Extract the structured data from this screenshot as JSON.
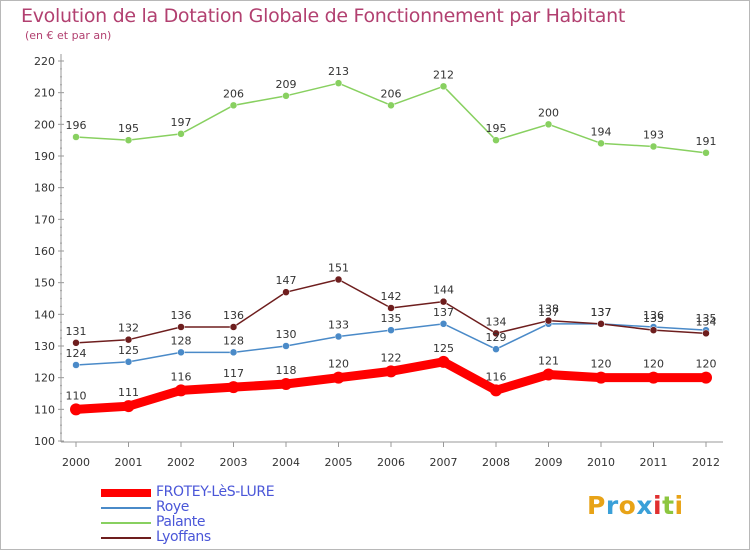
{
  "title": "Evolution de la Dotation Globale de Fonctionnement par Habitant",
  "subtitle": "(en € et par an)",
  "logo": {
    "letters": [
      "P",
      "r",
      "o",
      "x",
      "i",
      "t",
      "i"
    ],
    "colors": [
      "#e8a317",
      "#3aa0d8",
      "#e8a317",
      "#3aa0d8",
      "#e03030",
      "#8cc63f",
      "#e8a317"
    ]
  },
  "chart_data": {
    "type": "line",
    "x": [
      "2000",
      "2001",
      "2002",
      "2003",
      "2004",
      "2005",
      "2006",
      "2007",
      "2008",
      "2009",
      "2010",
      "2011",
      "2012"
    ],
    "ylim": [
      100,
      220
    ],
    "yticks": [
      "100",
      "110",
      "120",
      "130",
      "140",
      "150",
      "160",
      "170",
      "180",
      "190",
      "200",
      "210",
      "220"
    ],
    "grid": false,
    "legend_position": "bottom-left",
    "series": [
      {
        "name": "FROTEY-LèS-LURE",
        "color": "#ff0000",
        "values": [
          110,
          111,
          116,
          117,
          118,
          120,
          122,
          125,
          116,
          121,
          120,
          120,
          120
        ]
      },
      {
        "name": "Roye",
        "color": "#4a8ac8",
        "values": [
          124,
          125,
          128,
          128,
          130,
          133,
          135,
          137,
          129,
          137,
          137,
          136,
          135
        ]
      },
      {
        "name": "Palante",
        "color": "#88d060",
        "values": [
          196,
          195,
          197,
          206,
          209,
          213,
          206,
          212,
          195,
          200,
          194,
          193,
          191
        ]
      },
      {
        "name": "Lyoffans",
        "color": "#6e1e1e",
        "values": [
          131,
          132,
          136,
          136,
          147,
          151,
          142,
          144,
          134,
          138,
          137,
          135,
          134
        ]
      }
    ]
  }
}
